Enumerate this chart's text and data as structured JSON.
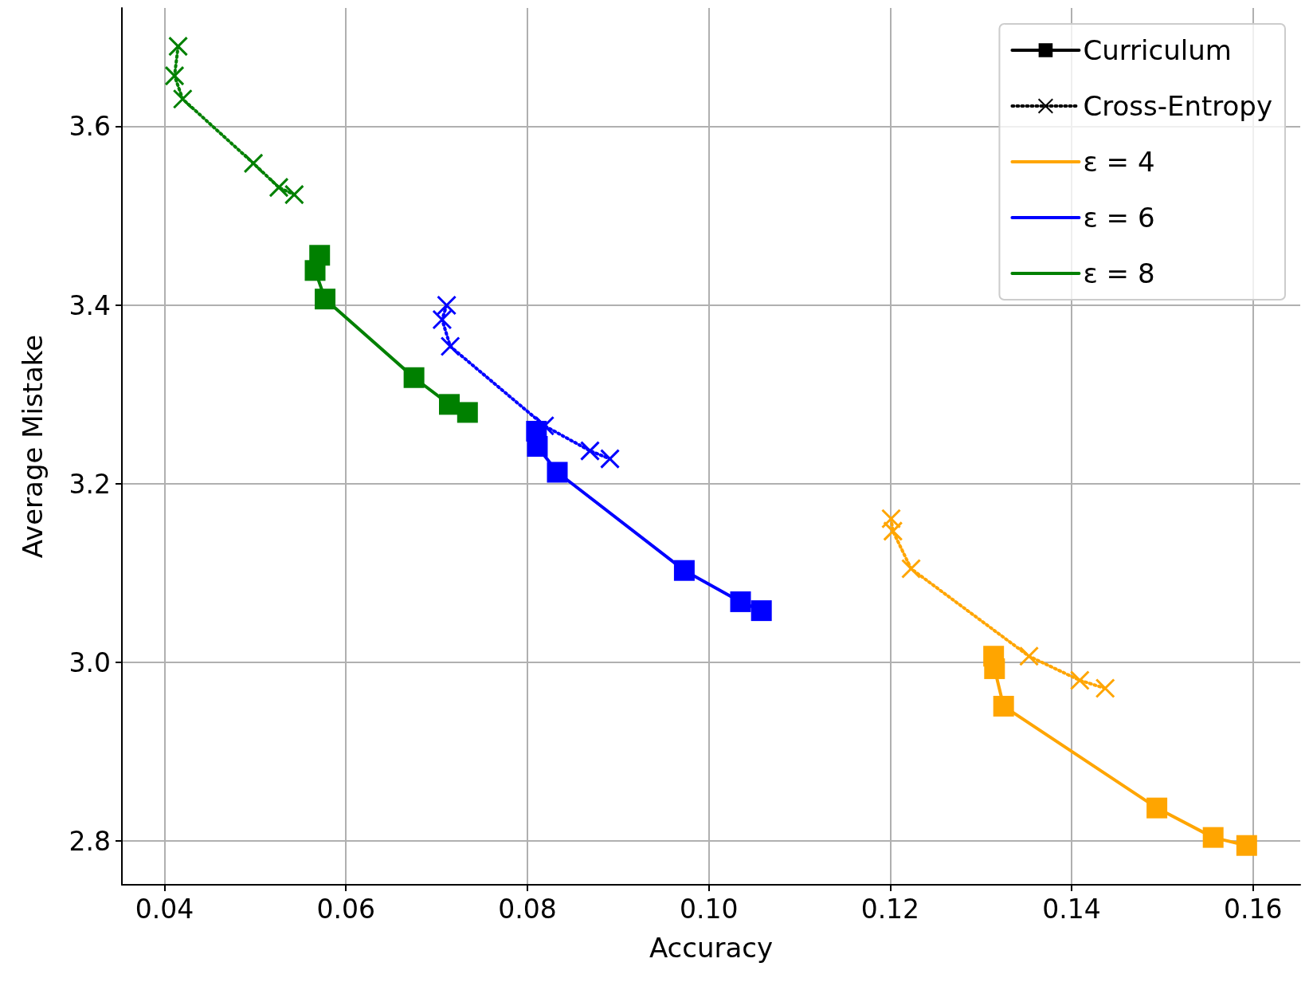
{
  "chart_data": {
    "type": "line",
    "xlabel": "Accuracy",
    "ylabel": "Average Mistake",
    "xlim": [
      0.0353,
      0.1652
    ],
    "ylim": [
      2.751,
      3.733
    ],
    "xticks": [
      {
        "value": 0.04,
        "label": "0.04"
      },
      {
        "value": 0.06,
        "label": "0.06"
      },
      {
        "value": 0.08,
        "label": "0.08"
      },
      {
        "value": 0.1,
        "label": "0.10"
      },
      {
        "value": 0.12,
        "label": "0.12"
      },
      {
        "value": 0.14,
        "label": "0.14"
      },
      {
        "value": 0.16,
        "label": "0.16"
      }
    ],
    "yticks": [
      {
        "value": 2.8,
        "label": "2.8"
      },
      {
        "value": 3,
        "label": "3.0"
      },
      {
        "value": 3.2,
        "label": "3.2"
      },
      {
        "value": 3.4,
        "label": "3.4"
      },
      {
        "value": 3.6,
        "label": "3.6"
      }
    ],
    "grid": true,
    "legend": "top right",
    "series": [
      {
        "color": "#ffa500",
        "marker": "square",
        "line_style": "solid",
        "x": [
          0.1314,
          0.1315,
          0.1325,
          0.1494,
          0.1556,
          0.1593
        ],
        "values": [
          3.007,
          2.993,
          2.951,
          2.837,
          2.804,
          2.795
        ]
      },
      {
        "color": "#ffa500",
        "marker": "cross",
        "line_style": "dotted",
        "x": [
          0.1201,
          0.1203,
          0.1223,
          0.1353,
          0.1409,
          0.1437
        ],
        "values": [
          3.161,
          3.147,
          3.105,
          3.007,
          2.98,
          2.971
        ]
      },
      {
        "color": "#0000ff",
        "marker": "square",
        "line_style": "solid",
        "x": [
          0.081,
          0.0811,
          0.0833,
          0.0973,
          0.1035,
          0.1058
        ],
        "values": [
          3.259,
          3.242,
          3.213,
          3.103,
          3.068,
          3.058
        ]
      },
      {
        "color": "#0000ff",
        "marker": "cross",
        "line_style": "dotted",
        "x": [
          0.0711,
          0.0706,
          0.0715,
          0.0819,
          0.0869,
          0.0891
        ],
        "values": [
          3.4,
          3.384,
          3.354,
          3.265,
          3.237,
          3.228
        ]
      },
      {
        "color": "#008000",
        "marker": "square",
        "line_style": "solid",
        "x": [
          0.0571,
          0.0566,
          0.0577,
          0.0675,
          0.0714,
          0.0734
        ],
        "values": [
          3.456,
          3.439,
          3.407,
          3.319,
          3.289,
          3.28
        ]
      },
      {
        "color": "#008000",
        "marker": "cross",
        "line_style": "dotted",
        "x": [
          0.0415,
          0.0411,
          0.042,
          0.0498,
          0.0526,
          0.0543
        ],
        "values": [
          3.69,
          3.657,
          3.631,
          3.559,
          3.532,
          3.524
        ]
      },
      {
        "name": "Curriculum",
        "color": "#000000",
        "marker": "square",
        "line_style": "solid"
      },
      {
        "name": "Cross-Entropy",
        "color": "#000000",
        "marker": "cross",
        "line_style": "dotted"
      },
      {
        "name": "ε = 4",
        "color": "#ffa500",
        "marker": "none",
        "line_style": "solid"
      },
      {
        "name": "ε = 6",
        "color": "#0000ff",
        "marker": "none",
        "line_style": "solid"
      },
      {
        "name": "ε = 8",
        "color": "#008000",
        "marker": "none",
        "line_style": "solid"
      }
    ]
  }
}
